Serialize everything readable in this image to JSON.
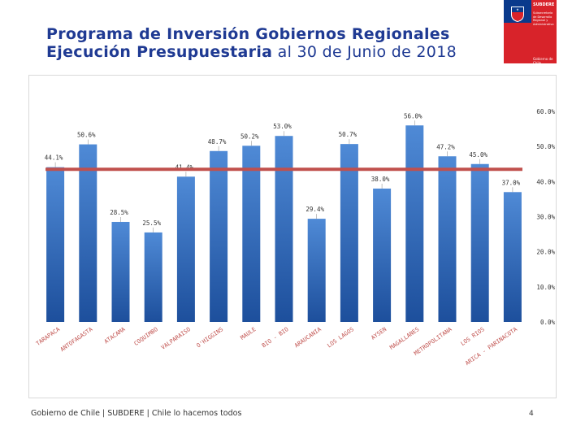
{
  "header": {
    "title_line1": "Programa de Inversión Gobiernos Regionales",
    "title_line2_bold": "Ejecución Presupuestaria",
    "title_line2_rest": " al 30 de Junio de 2018"
  },
  "logo": {
    "name": "SUBDERE",
    "subtitle": "Subsecretaría de Desarrollo Regional y Administrativo",
    "government": "Gobierno de Chile"
  },
  "footer": {
    "text": "Gobierno de Chile | SUBDERE | Chile lo hacemos todos",
    "page_number": "4"
  },
  "colors": {
    "title": "#1f3a93",
    "bar_top": "#4f8ad6",
    "bar_bottom": "#1d4f9c",
    "average_line": "#c0504d"
  },
  "chart_data": {
    "type": "bar",
    "categories": [
      "TARAPACA",
      "ANTOFAGASTA",
      "ATACAMA",
      "COQUIMBO",
      "VALPARAISO",
      "O'HIGGINS",
      "MAULE",
      "BIO - BIO",
      "ARAUCANIA",
      "LOS LAGOS",
      "AYSEN",
      "MAGALLANES",
      "METROPOLITANA",
      "LOS RIOS",
      "ARICA - PARINACOTA"
    ],
    "values": [
      44.1,
      50.6,
      28.5,
      25.5,
      41.4,
      48.7,
      50.2,
      53.0,
      29.4,
      50.7,
      38.0,
      56.0,
      47.2,
      45.0,
      37.0
    ],
    "data_labels": [
      "44.1%",
      "50.6%",
      "28.5%",
      "25.5%",
      "41.4%",
      "48.7%",
      "50.2%",
      "53.0%",
      "29.4%",
      "50.7%",
      "38.0%",
      "56.0%",
      "47.2%",
      "45.0%",
      "37.0%"
    ],
    "average_line_value": 43.5,
    "ylim": [
      0,
      60
    ],
    "y_ticks": [
      "0.0%",
      "10.0%",
      "20.0%",
      "30.0%",
      "40.0%",
      "50.0%",
      "60.0%"
    ],
    "y_axis_position": "right",
    "title": "",
    "xlabel": "",
    "ylabel": "",
    "grid": false
  }
}
